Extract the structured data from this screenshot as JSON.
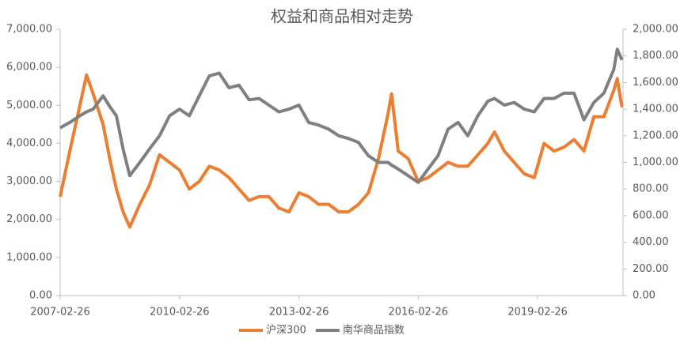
{
  "chart_data": {
    "type": "line",
    "title": "权益和商品相对走势",
    "x": [
      "2007-02-26",
      "2007-05-26",
      "2007-08-26",
      "2007-10-26",
      "2007-12-26",
      "2008-03-26",
      "2008-05-26",
      "2008-07-26",
      "2008-09-26",
      "2008-11-26",
      "2009-02-26",
      "2009-05-26",
      "2009-08-26",
      "2009-11-26",
      "2010-02-26",
      "2010-05-26",
      "2010-08-26",
      "2010-11-26",
      "2011-02-26",
      "2011-05-26",
      "2011-08-26",
      "2011-11-26",
      "2012-02-26",
      "2012-05-26",
      "2012-08-26",
      "2012-11-26",
      "2013-02-26",
      "2013-05-26",
      "2013-08-26",
      "2013-11-26",
      "2014-02-26",
      "2014-05-26",
      "2014-08-26",
      "2014-11-26",
      "2015-02-26",
      "2015-05-26",
      "2015-06-26",
      "2015-08-26",
      "2015-11-26",
      "2016-02-26",
      "2016-05-26",
      "2016-08-26",
      "2016-11-26",
      "2017-02-26",
      "2017-05-26",
      "2017-08-26",
      "2017-11-26",
      "2018-01-26",
      "2018-04-26",
      "2018-07-26",
      "2018-10-26",
      "2019-01-26",
      "2019-04-26",
      "2019-07-26",
      "2019-10-26",
      "2020-01-26",
      "2020-04-26",
      "2020-07-26",
      "2020-10-26",
      "2021-01-26",
      "2021-02-26",
      "2021-04-10"
    ],
    "xlim": [
      "2007-02-26",
      "2021-04-20"
    ],
    "xticks": [
      "2007-02-26",
      "2010-02-26",
      "2013-02-26",
      "2016-02-26",
      "2019-02-26"
    ],
    "series": [
      {
        "name": "沪深300",
        "color": "#ed7d31",
        "values": [
          2600,
          3800,
          5000,
          5800,
          5300,
          4500,
          3600,
          2800,
          2200,
          1800,
          2400,
          2900,
          3700,
          3500,
          3300,
          2800,
          3000,
          3400,
          3300,
          3100,
          2800,
          2500,
          2600,
          2600,
          2300,
          2200,
          2700,
          2600,
          2400,
          2400,
          2200,
          2200,
          2400,
          2700,
          3600,
          4800,
          5300,
          3800,
          3600,
          3000,
          3100,
          3300,
          3500,
          3400,
          3400,
          3700,
          4000,
          4300,
          3800,
          3500,
          3200,
          3100,
          4000,
          3800,
          3900,
          4100,
          3800,
          4700,
          4700,
          5400,
          5700,
          4950
        ]
      },
      {
        "name": "南华商品指数",
        "color": "#7f7f7f",
        "axis": "y2",
        "values": [
          1260,
          1300,
          1350,
          1380,
          1400,
          1500,
          1420,
          1350,
          1100,
          900,
          1000,
          1100,
          1200,
          1350,
          1400,
          1350,
          1500,
          1650,
          1670,
          1560,
          1580,
          1470,
          1480,
          1430,
          1380,
          1400,
          1430,
          1300,
          1280,
          1250,
          1200,
          1180,
          1150,
          1050,
          1000,
          1000,
          980,
          950,
          900,
          850,
          950,
          1050,
          1250,
          1300,
          1200,
          1350,
          1460,
          1480,
          1430,
          1450,
          1400,
          1380,
          1480,
          1480,
          1520,
          1520,
          1320,
          1450,
          1520,
          1700,
          1850,
          1770
        ]
      }
    ],
    "ylim": [
      0,
      7000
    ],
    "yticks": [
      {
        "value": 0,
        "label": "0.00"
      },
      {
        "value": 1000,
        "label": "1,000.00"
      },
      {
        "value": 2000,
        "label": "2,000.00"
      },
      {
        "value": 3000,
        "label": "3,000.00"
      },
      {
        "value": 4000,
        "label": "4,000.00"
      },
      {
        "value": 5000,
        "label": "5,000.00"
      },
      {
        "value": 6000,
        "label": "6,000.00"
      },
      {
        "value": 7000,
        "label": "7,000.00"
      }
    ],
    "y2lim": [
      0,
      2000
    ],
    "y2ticks": [
      {
        "value": 0,
        "label": "0.00"
      },
      {
        "value": 200,
        "label": "200.00"
      },
      {
        "value": 400,
        "label": "400.00"
      },
      {
        "value": 600,
        "label": "600.00"
      },
      {
        "value": 800,
        "label": "800.00"
      },
      {
        "value": 1000,
        "label": "1,000.00"
      },
      {
        "value": 1200,
        "label": "1,200.00"
      },
      {
        "value": 1400,
        "label": "1,400.00"
      },
      {
        "value": 1600,
        "label": "1,600.00"
      },
      {
        "value": 1800,
        "label": "1,800.00"
      },
      {
        "value": 2000,
        "label": "2,000.00"
      }
    ],
    "legend": "bottom"
  }
}
